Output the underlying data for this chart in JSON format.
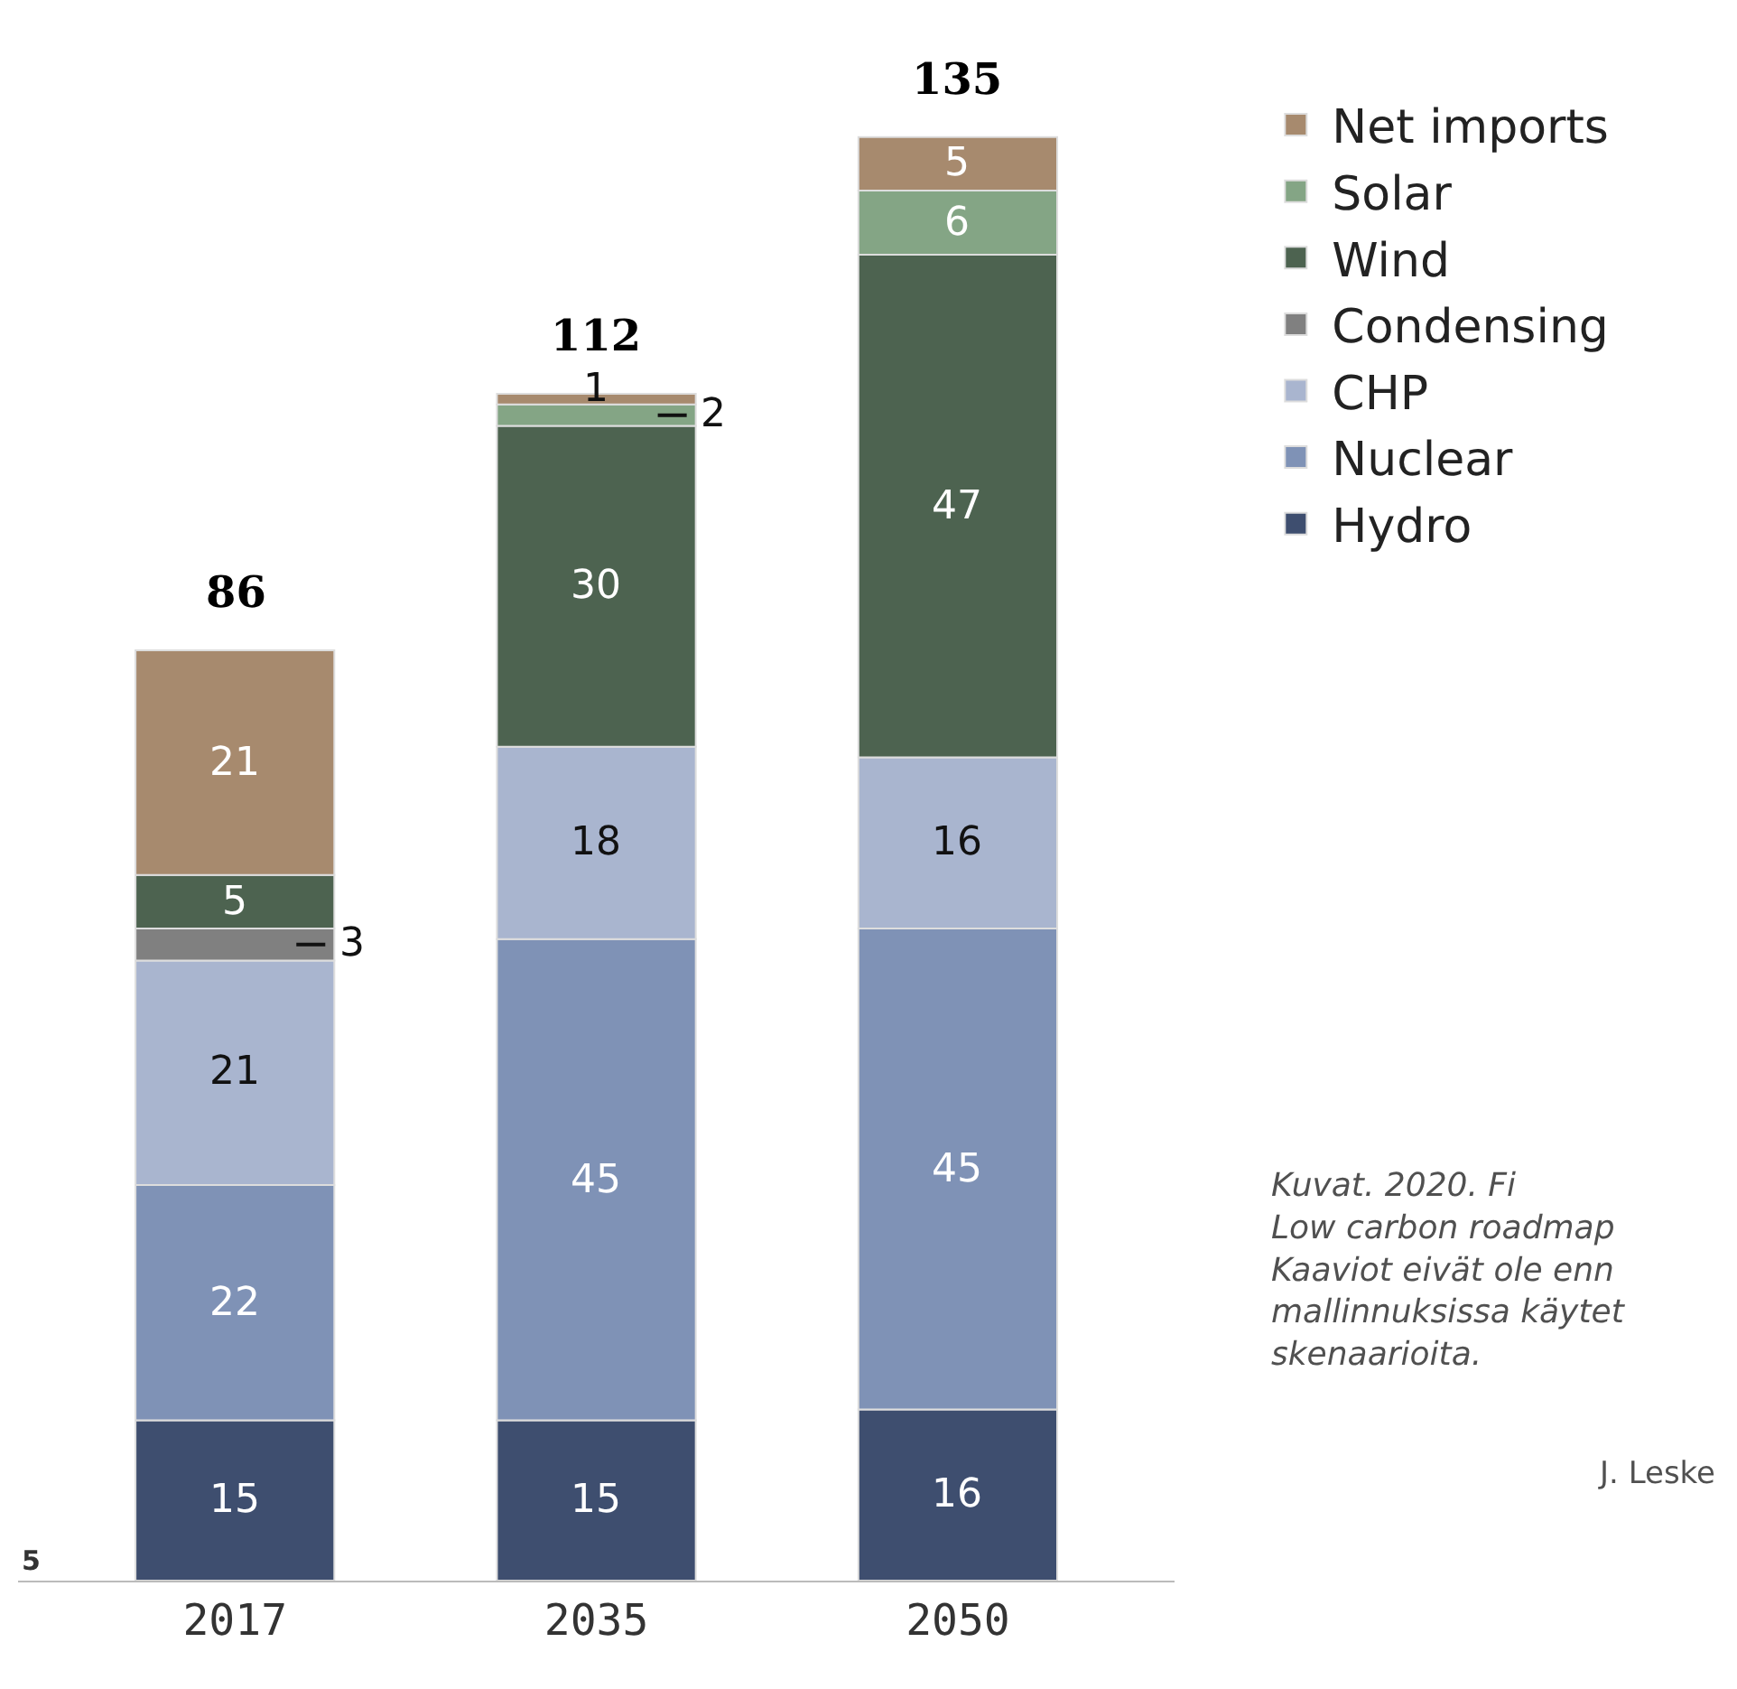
{
  "chart_data": {
    "type": "bar",
    "stacked": true,
    "categories": [
      "2017",
      "2035",
      "2050"
    ],
    "series": [
      {
        "name": "Hydro",
        "color": "#3e4e6f",
        "values": [
          15,
          15,
          16
        ]
      },
      {
        "name": "Nuclear",
        "color": "#7f92b6",
        "values": [
          22,
          45,
          45
        ]
      },
      {
        "name": "CHP",
        "color": "#a9b5cf",
        "values": [
          21,
          18,
          16
        ]
      },
      {
        "name": "Condensing",
        "color": "#808080",
        "values": [
          3,
          null,
          null
        ]
      },
      {
        "name": "Wind",
        "color": "#4d6350",
        "values": [
          5,
          30,
          47
        ]
      },
      {
        "name": "Solar",
        "color": "#84a585",
        "values": [
          null,
          2,
          6
        ]
      },
      {
        "name": "Net imports",
        "color": "#a78a6e",
        "values": [
          21,
          1,
          5
        ]
      }
    ],
    "data_labels": true,
    "totals": [
      "86",
      "112",
      "135"
    ],
    "legend": "top right",
    "annotations": [
      "Kuvat. 2020. Fi\nLow carbon roadmap\nKaaviot eivät ole enn\nmallinnuksissa käytet\nskenaarioita.",
      "J. Leske",
      "5"
    ]
  }
}
